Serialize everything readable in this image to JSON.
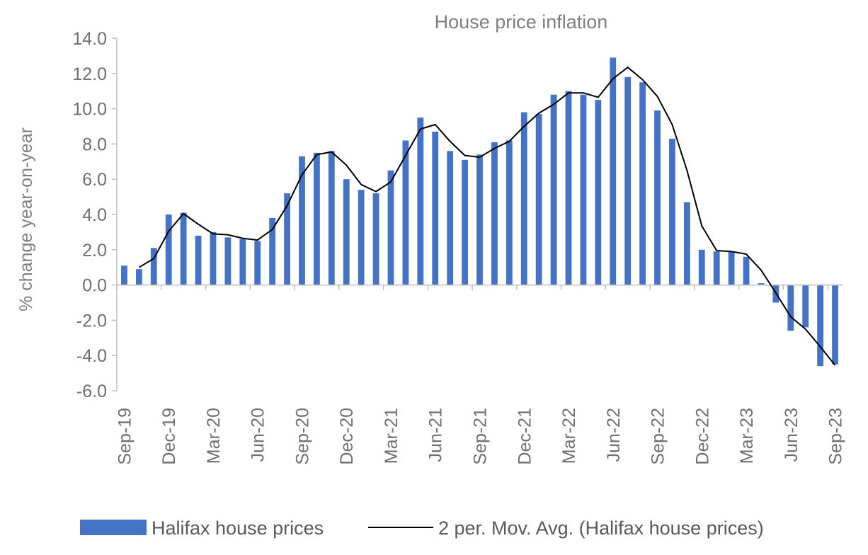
{
  "chart_data": {
    "type": "bar",
    "title": "House price inflation",
    "ylabel": "% change year-on-year",
    "xlabel": "",
    "ylim": [
      -6,
      14
    ],
    "yticks": [
      14,
      12,
      10,
      8,
      6,
      4,
      2,
      0,
      -2,
      -4,
      -6
    ],
    "ytick_labels": [
      "14.0",
      "12.0",
      "10.0",
      "8.0",
      "6.0",
      "4.0",
      "2.0",
      "0.0",
      "-2.0",
      "-4.0",
      "-6.0"
    ],
    "categories": [
      "Sep-19",
      "Oct-19",
      "Nov-19",
      "Dec-19",
      "Jan-20",
      "Feb-20",
      "Mar-20",
      "Apr-20",
      "May-20",
      "Jun-20",
      "Jul-20",
      "Aug-20",
      "Sep-20",
      "Oct-20",
      "Nov-20",
      "Dec-20",
      "Jan-21",
      "Feb-21",
      "Mar-21",
      "Apr-21",
      "May-21",
      "Jun-21",
      "Jul-21",
      "Aug-21",
      "Sep-21",
      "Oct-21",
      "Nov-21",
      "Dec-21",
      "Jan-22",
      "Feb-22",
      "Mar-22",
      "Apr-22",
      "May-22",
      "Jun-22",
      "Jul-22",
      "Aug-22",
      "Sep-22",
      "Oct-22",
      "Nov-22",
      "Dec-22",
      "Jan-23",
      "Feb-23",
      "Mar-23",
      "Apr-23",
      "May-23",
      "Jun-23",
      "Jul-23",
      "Aug-23",
      "Sep-23"
    ],
    "x_tick_labels": [
      "Sep-19",
      "Dec-19",
      "Mar-20",
      "Jun-20",
      "Sep-20",
      "Dec-20",
      "Mar-21",
      "Jun-21",
      "Sep-21",
      "Dec-21",
      "Mar-22",
      "Jun-22",
      "Sep-22",
      "Dec-22",
      "Mar-23",
      "Jun-23",
      "Sep-23"
    ],
    "series": [
      {
        "name": "Halifax house prices",
        "type": "bar",
        "color": "#4472c4",
        "values": [
          1.1,
          0.9,
          2.1,
          4.0,
          4.1,
          2.8,
          3.0,
          2.7,
          2.6,
          2.5,
          3.8,
          5.2,
          7.3,
          7.5,
          7.6,
          6.0,
          5.4,
          5.2,
          6.5,
          8.2,
          9.5,
          8.7,
          7.6,
          7.1,
          7.4,
          8.1,
          8.2,
          9.8,
          9.7,
          10.8,
          11.0,
          10.8,
          10.5,
          12.9,
          11.8,
          11.5,
          9.9,
          8.3,
          4.7,
          2.0,
          1.9,
          1.9,
          1.6,
          0.1,
          -1.0,
          -2.6,
          -2.4,
          -4.6,
          -4.5
        ]
      },
      {
        "name": "2 per. Mov. Avg. (Halifax house prices)",
        "type": "line",
        "color": "#000000",
        "values": [
          null,
          1.0,
          1.5,
          3.05,
          4.05,
          3.45,
          2.9,
          2.85,
          2.65,
          2.55,
          3.15,
          4.5,
          6.25,
          7.4,
          7.55,
          6.8,
          5.7,
          5.3,
          5.85,
          7.35,
          8.85,
          9.1,
          8.15,
          7.35,
          7.25,
          7.75,
          8.15,
          9.0,
          9.75,
          10.25,
          10.9,
          10.9,
          10.65,
          11.7,
          12.35,
          11.65,
          10.7,
          9.1,
          6.5,
          3.35,
          1.95,
          1.9,
          1.75,
          0.85,
          -0.45,
          -1.8,
          -2.5,
          -3.5,
          -4.55
        ]
      }
    ],
    "legend": "bottom",
    "grid": false
  }
}
